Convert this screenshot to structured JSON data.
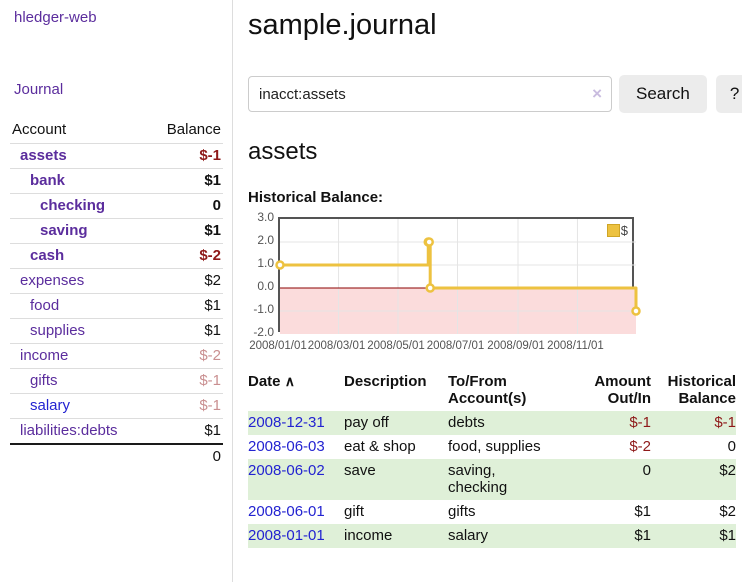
{
  "sidebar": {
    "app_title": "hledger-web",
    "journal_link": "Journal",
    "accounts_table": {
      "headers": {
        "account": "Account",
        "balance": "Balance"
      },
      "rows": [
        {
          "name": "assets",
          "balance": "$-1",
          "depth": 1,
          "bold": true,
          "neg": "strong",
          "link_color": "purple"
        },
        {
          "name": "bank",
          "balance": "$1",
          "depth": 2,
          "bold": true,
          "neg": "",
          "link_color": "purple"
        },
        {
          "name": "checking",
          "balance": "0",
          "depth": 3,
          "bold": true,
          "neg": "",
          "link_color": "purple"
        },
        {
          "name": "saving",
          "balance": "$1",
          "depth": 3,
          "bold": true,
          "neg": "",
          "link_color": "purple"
        },
        {
          "name": "cash",
          "balance": "$-2",
          "depth": 2,
          "bold": true,
          "neg": "strong",
          "link_color": "purple"
        },
        {
          "name": "expenses",
          "balance": "$2",
          "depth": 1,
          "bold": false,
          "neg": "",
          "link_color": "purple"
        },
        {
          "name": "food",
          "balance": "$1",
          "depth": 2,
          "bold": false,
          "neg": "",
          "link_color": "purple"
        },
        {
          "name": "supplies",
          "balance": "$1",
          "depth": 2,
          "bold": false,
          "neg": "",
          "link_color": "purple"
        },
        {
          "name": "income",
          "balance": "$-2",
          "depth": 1,
          "bold": false,
          "neg": "soft",
          "link_color": "purple"
        },
        {
          "name": "gifts",
          "balance": "$-1",
          "depth": 2,
          "bold": false,
          "neg": "soft",
          "link_color": "purple"
        },
        {
          "name": "salary",
          "balance": "$-1",
          "depth": 2,
          "bold": false,
          "neg": "soft",
          "link_color": "blue"
        },
        {
          "name": "liabilities:debts",
          "balance": "$1",
          "depth": 1,
          "bold": false,
          "neg": "",
          "link_color": "purple"
        }
      ],
      "total": "0"
    }
  },
  "header": {
    "title": "sample.journal"
  },
  "search": {
    "value": "inacct:assets",
    "clear_icon": "×",
    "button_label": "Search",
    "help_label": "?"
  },
  "account_page": {
    "heading": "assets",
    "chart_label": "Historical Balance:"
  },
  "chart_data": {
    "type": "line",
    "title": "Historical Balance",
    "step": true,
    "legend": "$",
    "legend_position": "top-right",
    "grid": true,
    "x_range": [
      "2008/01/01",
      "2008/12/31"
    ],
    "ylim": [
      -2,
      3
    ],
    "yticks": [
      3.0,
      2.0,
      1.0,
      0.0,
      -1.0,
      -2.0
    ],
    "xticks": [
      "2008/01/01",
      "2008/03/01",
      "2008/05/01",
      "2008/07/01",
      "2008/09/01",
      "2008/11/01"
    ],
    "series": [
      {
        "name": "$",
        "color": "#EDC240",
        "points": [
          {
            "x": "2008/01/01",
            "y": 1
          },
          {
            "x": "2008/06/01",
            "y": 2
          },
          {
            "x": "2008/06/02",
            "y": 2
          },
          {
            "x": "2008/06/03",
            "y": 0
          },
          {
            "x": "2008/12/31",
            "y": -1
          }
        ]
      }
    ],
    "negative_region_color": "#fbdcdc",
    "zero_line_color": "#8b0000"
  },
  "register": {
    "headers": [
      "Date",
      "Description",
      "To/From Account(s)",
      "Amount Out/In",
      "Historical Balance"
    ],
    "sort_icon": "∧",
    "rows": [
      {
        "date": "2008-12-31",
        "description": "pay off",
        "accounts": "debts",
        "amount": "$-1",
        "balance": "$-1",
        "amount_neg": true,
        "balance_neg": true
      },
      {
        "date": "2008-06-03",
        "description": "eat & shop",
        "accounts": "food, supplies",
        "amount": "$-2",
        "balance": "0",
        "amount_neg": true,
        "balance_neg": false
      },
      {
        "date": "2008-06-02",
        "description": "save",
        "accounts": "saving, checking",
        "amount": "0",
        "balance": "$2",
        "amount_neg": false,
        "balance_neg": false
      },
      {
        "date": "2008-06-01",
        "description": "gift",
        "accounts": "gifts",
        "amount": "$1",
        "balance": "$2",
        "amount_neg": false,
        "balance_neg": false
      },
      {
        "date": "2008-01-01",
        "description": "income",
        "accounts": "salary",
        "amount": "$1",
        "balance": "$1",
        "amount_neg": false,
        "balance_neg": false
      }
    ]
  },
  "colors": {
    "link_purple": "#5b2d9d",
    "link_blue": "#2323d1",
    "negative_strong": "#8e1919",
    "negative_soft": "#c98f90",
    "row_stripe_green": "#dff0d8",
    "chart_line_yellow": "#EDC240",
    "negative_region_pink": "#fbdcdc",
    "zero_line_red": "#8b0000",
    "chart_border_gray": "#545454",
    "button_gray": "#ececec"
  }
}
